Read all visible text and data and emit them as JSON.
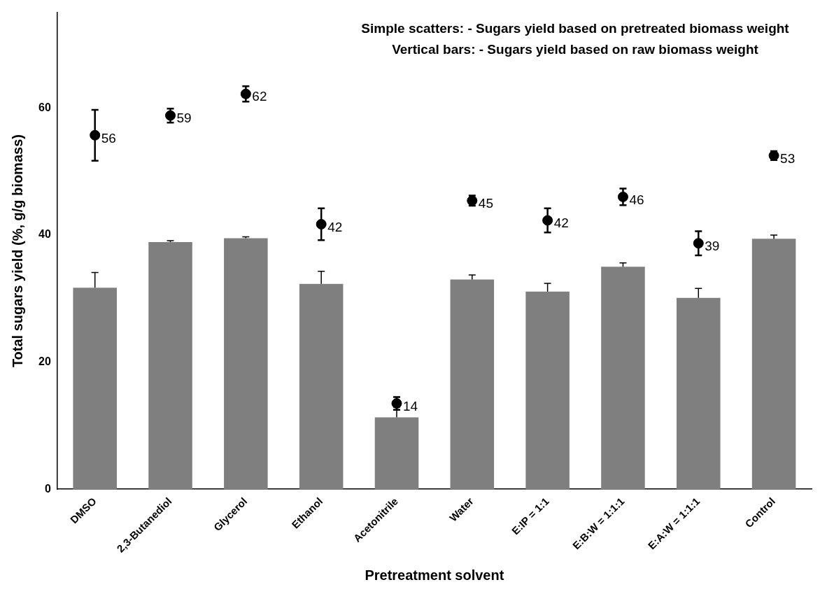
{
  "chart_data": {
    "type": "bar",
    "xlabel": "Pretreatment solvent",
    "ylabel": "Total sugars yield (%, g/g biomass)",
    "annotations": [
      "Simple scatters: - Sugars yield based on pretreated biomass weight",
      "Vertical bars: - Sugars yield based on raw biomass weight"
    ],
    "categories": [
      "DMSO",
      "2,3-Butanediol",
      "Glycerol",
      "Ethanol",
      "Acetonitrile",
      "Water",
      "E:IP = 1:1",
      "E:B:W = 1:1:1",
      "E:A:W = 1:1:1",
      "Control"
    ],
    "series": [
      {
        "color": "#7f7f7f",
        "values": [
          31.7,
          38.9,
          39.5,
          32.3,
          11.3,
          33.0,
          31.1,
          35.0,
          30.1,
          39.4
        ],
        "errors": [
          [
            31.7,
            34.1
          ],
          [
            38.9,
            39.1
          ],
          [
            39.5,
            39.7
          ],
          [
            32.3,
            34.3
          ],
          [
            11.3,
            12.9
          ],
          [
            33.0,
            33.7
          ],
          [
            31.1,
            32.4
          ],
          [
            35.0,
            35.6
          ],
          [
            30.1,
            31.6
          ],
          [
            39.4,
            40.0
          ]
        ]
      },
      {
        "type": "scatter",
        "color": "#000000",
        "marker": "circle",
        "x": [
          "DMSO",
          "2,3-Butanediol",
          "Glycerol",
          "Ethanol",
          "Acetonitrile",
          "Water",
          "E:IP = 1:1",
          "E:B:W = 1:1:1",
          "E:A:W = 1:1:1",
          "Control"
        ],
        "values": [
          55.7,
          58.8,
          62.2,
          41.7,
          13.5,
          45.4,
          42.3,
          46.0,
          38.7,
          52.5
        ],
        "errors": [
          4.0,
          1.1,
          1.2,
          2.5,
          1.0,
          0.8,
          1.9,
          1.3,
          1.9,
          0.7
        ],
        "value_labels": [
          "56",
          "59",
          "62",
          "42",
          "14",
          "45",
          "42",
          "46",
          "39",
          "53"
        ]
      }
    ],
    "ylim": [
      0,
      75
    ],
    "yticks": [
      0,
      20,
      40,
      60
    ],
    "grid": false,
    "legend": false
  }
}
